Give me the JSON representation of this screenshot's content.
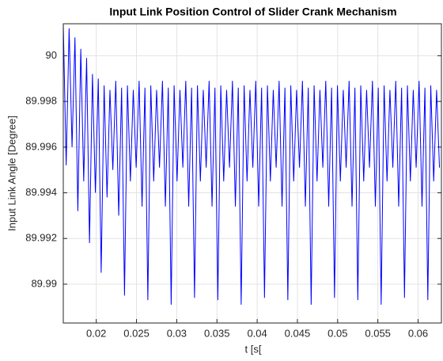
{
  "chart_data": {
    "type": "line",
    "title": "Input Link Position Control of Slider Crank Mechanism",
    "xlabel": "t [s[",
    "ylabel": "Input Link Angle [Degree]",
    "xlim": [
      0.0159,
      0.0629
    ],
    "ylim": [
      89.9883,
      90.0014
    ],
    "xticks": [
      0.02,
      0.025,
      0.03,
      0.035,
      0.04,
      0.045,
      0.05,
      0.055,
      0.06
    ],
    "yticks": [
      89.99,
      89.992,
      89.994,
      89.996,
      89.998,
      90
    ],
    "grid": true,
    "x": [
      0.0159,
      0.01626,
      0.016625,
      0.01699,
      0.01735,
      0.01771,
      0.018075,
      0.01844,
      0.0188,
      0.01916,
      0.019525,
      0.01989,
      0.02025,
      0.02061,
      0.020975,
      0.02134,
      0.0217,
      0.02206,
      0.022425,
      0.02279,
      0.02315,
      0.02351,
      0.023875,
      0.02424,
      0.0246,
      0.02496,
      0.025325,
      0.02569,
      0.02605,
      0.02641,
      0.026775,
      0.02714,
      0.0275,
      0.02786,
      0.028225,
      0.02859,
      0.02895,
      0.02931,
      0.029675,
      0.03004,
      0.0304,
      0.03076,
      0.031125,
      0.03149,
      0.03185,
      0.03221,
      0.032575,
      0.03294,
      0.0333,
      0.03366,
      0.034025,
      0.03439,
      0.03475,
      0.03511,
      0.035475,
      0.03584,
      0.0362,
      0.03656,
      0.036925,
      0.03729,
      0.03765,
      0.03801,
      0.038375,
      0.03874,
      0.0391,
      0.03946,
      0.039825,
      0.04019,
      0.04055,
      0.04091,
      0.041275,
      0.04164,
      0.042,
      0.04236,
      0.042725,
      0.04309,
      0.04345,
      0.04381,
      0.044175,
      0.04454,
      0.0449,
      0.04526,
      0.045625,
      0.04599,
      0.04635,
      0.04671,
      0.047075,
      0.04744,
      0.0478,
      0.04816,
      0.048525,
      0.04889,
      0.04925,
      0.04961,
      0.049975,
      0.05034,
      0.0507,
      0.05106,
      0.051425,
      0.05179,
      0.05215,
      0.05251,
      0.052875,
      0.05324,
      0.0536,
      0.05396,
      0.054325,
      0.05469,
      0.05505,
      0.05541,
      0.055775,
      0.05614,
      0.0565,
      0.05686,
      0.057225,
      0.05759,
      0.05795,
      0.05831,
      0.058675,
      0.05904,
      0.0594,
      0.05976,
      0.060125,
      0.06049,
      0.06085,
      0.06121,
      0.061575,
      0.06194,
      0.0623,
      0.06266
    ],
    "series": [
      {
        "color": "#0000ff",
        "values": [
          90.0014,
          89.9952,
          90.0012,
          89.996,
          90.0008,
          89.9932,
          90.0003,
          89.9945,
          89.9999,
          89.9918,
          89.9992,
          89.994,
          89.999,
          89.9905,
          89.9987,
          89.9938,
          89.9985,
          89.995,
          89.9989,
          89.993,
          89.9986,
          89.9895,
          89.9987,
          89.9945,
          89.9985,
          89.9951,
          89.9989,
          89.9934,
          89.9986,
          89.9893,
          89.9987,
          89.9945,
          89.9985,
          89.9951,
          89.9989,
          89.9934,
          89.9986,
          89.9891,
          89.9987,
          89.9945,
          89.9985,
          89.9951,
          89.9989,
          89.9934,
          89.9986,
          89.9894,
          89.9987,
          89.9945,
          89.9985,
          89.9951,
          89.9989,
          89.9934,
          89.9986,
          89.9893,
          89.9987,
          89.9945,
          89.9985,
          89.9951,
          89.9989,
          89.9934,
          89.9986,
          89.9891,
          89.9987,
          89.9945,
          89.9985,
          89.9951,
          89.9989,
          89.9934,
          89.9986,
          89.9894,
          89.9987,
          89.9945,
          89.9985,
          89.9951,
          89.9989,
          89.9934,
          89.9986,
          89.9893,
          89.9987,
          89.9945,
          89.9985,
          89.9951,
          89.9989,
          89.9934,
          89.9986,
          89.9891,
          89.9987,
          89.9945,
          89.9985,
          89.9951,
          89.9989,
          89.9934,
          89.9986,
          89.9894,
          89.9987,
          89.9945,
          89.9985,
          89.9951,
          89.9989,
          89.9934,
          89.9986,
          89.9893,
          89.9987,
          89.9945,
          89.9985,
          89.9951,
          89.9989,
          89.9934,
          89.9986,
          89.9891,
          89.9987,
          89.9945,
          89.9985,
          89.9951,
          89.9989,
          89.9934,
          89.9986,
          89.9894,
          89.9987,
          89.9945,
          89.9985,
          89.9951,
          89.9989,
          89.9934,
          89.9986,
          89.9893,
          89.9987,
          89.9945,
          89.9985,
          89.9951
        ]
      }
    ]
  }
}
